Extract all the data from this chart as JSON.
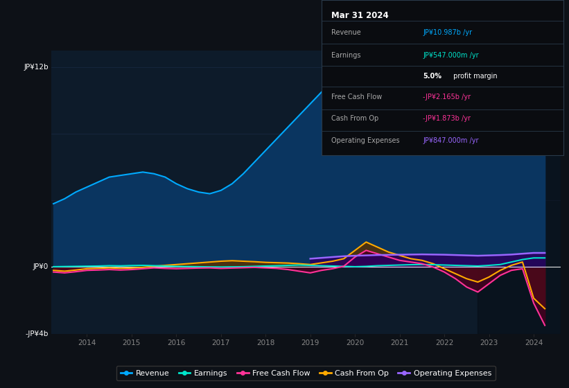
{
  "background_color": "#0d1117",
  "plot_bg_color": "#0d1b2a",
  "revenue_color": "#00aaff",
  "revenue_fill_color": "#0a3560",
  "earnings_color": "#00e5cc",
  "fcf_color": "#ff3399",
  "cashfromop_color": "#ffaa00",
  "opex_color": "#9966ff",
  "legend_items": [
    "Revenue",
    "Earnings",
    "Free Cash Flow",
    "Cash From Op",
    "Operating Expenses"
  ],
  "legend_colors": [
    "#00aaff",
    "#00e5cc",
    "#ff3399",
    "#ffaa00",
    "#9966ff"
  ],
  "ylim_min": -4000000000,
  "ylim_max": 13000000000,
  "xlim_min": 2013.2,
  "xlim_max": 2024.6,
  "y_ticks": [
    12000000000,
    0,
    -4000000000
  ],
  "y_tick_labels": [
    "JP¥12b",
    "JP¥0",
    "-JP¥4b"
  ],
  "x_ticks": [
    2014,
    2015,
    2016,
    2017,
    2018,
    2019,
    2020,
    2021,
    2022,
    2023,
    2024
  ],
  "grid_color": "#1e3050",
  "zero_line_color": "#ffffff",
  "dark_overlay_start": 2022.75,
  "revenue_x": [
    2013.25,
    2013.5,
    2013.75,
    2014.0,
    2014.25,
    2014.5,
    2014.75,
    2015.0,
    2015.25,
    2015.5,
    2015.75,
    2016.0,
    2016.25,
    2016.5,
    2016.75,
    2017.0,
    2017.25,
    2017.5,
    2017.75,
    2018.0,
    2018.25,
    2018.5,
    2018.75,
    2019.0,
    2019.25,
    2019.5,
    2019.75,
    2020.0,
    2020.25,
    2020.5,
    2020.75,
    2021.0,
    2021.25,
    2021.5,
    2021.75,
    2022.0,
    2022.25,
    2022.5,
    2022.75,
    2023.0,
    2023.25,
    2023.5,
    2023.75,
    2024.0,
    2024.25
  ],
  "revenue_y": [
    3800000000,
    4100000000,
    4500000000,
    4800000000,
    5100000000,
    5400000000,
    5500000000,
    5600000000,
    5700000000,
    5600000000,
    5400000000,
    5000000000,
    4700000000,
    4500000000,
    4400000000,
    4600000000,
    5000000000,
    5600000000,
    6300000000,
    7000000000,
    7700000000,
    8400000000,
    9100000000,
    9800000000,
    10500000000,
    11200000000,
    11700000000,
    11900000000,
    11800000000,
    11500000000,
    11200000000,
    11000000000,
    11100000000,
    11000000000,
    10800000000,
    10600000000,
    10200000000,
    9800000000,
    9600000000,
    9800000000,
    9200000000,
    8800000000,
    9400000000,
    10200000000,
    10987000000
  ],
  "earnings_x": [
    2013.25,
    2013.5,
    2013.75,
    2014.0,
    2014.25,
    2014.5,
    2014.75,
    2015.0,
    2015.25,
    2015.5,
    2015.75,
    2016.0,
    2016.25,
    2016.5,
    2016.75,
    2017.0,
    2017.25,
    2017.5,
    2017.75,
    2018.0,
    2018.25,
    2018.5,
    2018.75,
    2019.0,
    2019.25,
    2019.5,
    2019.75,
    2020.0,
    2020.25,
    2020.5,
    2020.75,
    2021.0,
    2021.25,
    2021.5,
    2021.75,
    2022.0,
    2022.25,
    2022.5,
    2022.75,
    2023.0,
    2023.25,
    2023.5,
    2023.75,
    2024.0,
    2024.25
  ],
  "earnings_y": [
    20000000,
    30000000,
    40000000,
    50000000,
    60000000,
    80000000,
    70000000,
    90000000,
    100000000,
    80000000,
    60000000,
    40000000,
    30000000,
    20000000,
    10000000,
    0,
    10000000,
    20000000,
    40000000,
    60000000,
    80000000,
    100000000,
    120000000,
    100000000,
    80000000,
    60000000,
    40000000,
    20000000,
    40000000,
    80000000,
    100000000,
    120000000,
    140000000,
    150000000,
    140000000,
    120000000,
    100000000,
    80000000,
    60000000,
    100000000,
    150000000,
    300000000,
    450000000,
    547000000,
    547000000
  ],
  "cashop_x": [
    2013.25,
    2013.5,
    2013.75,
    2014.0,
    2014.25,
    2014.5,
    2014.75,
    2015.0,
    2015.25,
    2015.5,
    2015.75,
    2016.0,
    2016.25,
    2016.5,
    2016.75,
    2017.0,
    2017.25,
    2017.5,
    2017.75,
    2018.0,
    2018.25,
    2018.5,
    2018.75,
    2019.0,
    2019.25,
    2019.5,
    2019.75,
    2020.0,
    2020.25,
    2020.5,
    2020.75,
    2021.0,
    2021.25,
    2021.5,
    2021.75,
    2022.0,
    2022.25,
    2022.5,
    2022.75,
    2023.0,
    2023.25,
    2023.5,
    2023.75,
    2024.0,
    2024.25
  ],
  "cashop_y": [
    -200000000,
    -250000000,
    -180000000,
    -100000000,
    -80000000,
    -50000000,
    -80000000,
    -60000000,
    -20000000,
    50000000,
    100000000,
    150000000,
    200000000,
    250000000,
    300000000,
    350000000,
    380000000,
    350000000,
    320000000,
    280000000,
    260000000,
    240000000,
    200000000,
    150000000,
    250000000,
    350000000,
    500000000,
    1000000000,
    1500000000,
    1200000000,
    900000000,
    700000000,
    500000000,
    400000000,
    200000000,
    -100000000,
    -400000000,
    -700000000,
    -900000000,
    -600000000,
    -200000000,
    100000000,
    300000000,
    -1873000000,
    -2500000000
  ],
  "fcf_x": [
    2013.25,
    2013.5,
    2013.75,
    2014.0,
    2014.25,
    2014.5,
    2014.75,
    2015.0,
    2015.25,
    2015.5,
    2015.75,
    2016.0,
    2016.25,
    2016.5,
    2016.75,
    2017.0,
    2017.25,
    2017.5,
    2017.75,
    2018.0,
    2018.25,
    2018.5,
    2018.75,
    2019.0,
    2019.25,
    2019.5,
    2019.75,
    2020.0,
    2020.25,
    2020.5,
    2020.75,
    2021.0,
    2021.25,
    2021.5,
    2021.75,
    2022.0,
    2022.25,
    2022.5,
    2022.75,
    2023.0,
    2023.25,
    2023.5,
    2023.75,
    2024.0,
    2024.25
  ],
  "fcf_y": [
    -300000000,
    -350000000,
    -280000000,
    -200000000,
    -180000000,
    -150000000,
    -180000000,
    -150000000,
    -100000000,
    -50000000,
    -80000000,
    -100000000,
    -80000000,
    -60000000,
    -50000000,
    -80000000,
    -60000000,
    -40000000,
    -20000000,
    -50000000,
    -80000000,
    -150000000,
    -250000000,
    -350000000,
    -200000000,
    -100000000,
    50000000,
    600000000,
    1000000000,
    800000000,
    600000000,
    400000000,
    300000000,
    200000000,
    0,
    -300000000,
    -700000000,
    -1200000000,
    -1500000000,
    -1000000000,
    -500000000,
    -200000000,
    -100000000,
    -2165000000,
    -3500000000
  ],
  "opex_x": [
    2019.0,
    2019.25,
    2019.5,
    2019.75,
    2020.0,
    2020.25,
    2020.5,
    2020.75,
    2021.0,
    2021.25,
    2021.5,
    2021.75,
    2022.0,
    2022.25,
    2022.5,
    2022.75,
    2023.0,
    2023.25,
    2023.5,
    2023.75,
    2024.0,
    2024.25
  ],
  "opex_y": [
    500000000,
    550000000,
    600000000,
    650000000,
    680000000,
    700000000,
    720000000,
    730000000,
    740000000,
    750000000,
    760000000,
    750000000,
    740000000,
    720000000,
    700000000,
    680000000,
    700000000,
    720000000,
    750000000,
    800000000,
    847000000,
    847000000
  ]
}
